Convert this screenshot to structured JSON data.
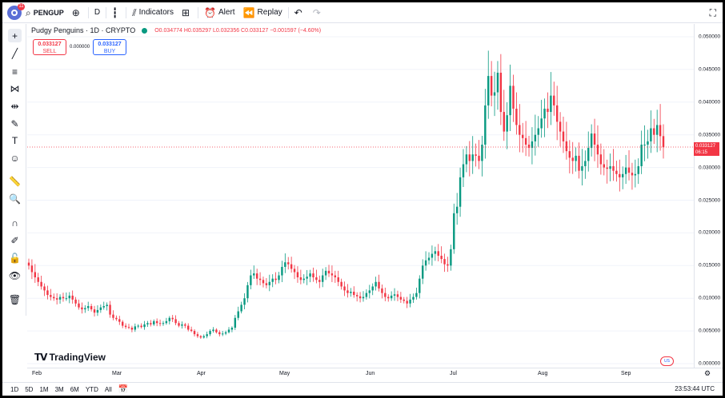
{
  "topbar": {
    "notification_count": "11",
    "symbol": "PENGUP",
    "interval": "D",
    "indicators_label": "Indicators",
    "alert_label": "Alert",
    "replay_label": "Replay"
  },
  "legend": {
    "title": "Pudgy Penguins · 1D · CRYPTO",
    "ohlc_text": "O0.034774 H0.035297 L0.032356 C0.033127 −0.001597 (−4.60%)"
  },
  "trade": {
    "sell_price": "0.033127",
    "sell_label": "SELL",
    "spread": "0.000000",
    "buy_price": "0.033127",
    "buy_label": "BUY"
  },
  "price_tag": {
    "price": "0.033127",
    "countdown": "06:15"
  },
  "colors": {
    "up": "#089981",
    "down": "#f23645",
    "accent": "#2962ff"
  },
  "brand": "TradingView",
  "bottombar": {
    "ranges": [
      "1D",
      "5D",
      "1M",
      "3M",
      "6M",
      "YTD",
      "All"
    ],
    "utc_time": "23:53:44 UTC"
  },
  "icons": {
    "left_toolbar": [
      "crosshair-icon",
      "trend-line-icon",
      "fib-retracement-icon",
      "pattern-icon",
      "prediction-icon",
      "brush-icon",
      "text-icon",
      "emoji-icon",
      "ruler-icon",
      "zoom-in-icon",
      "magnet-icon",
      "lock-drawing-icon",
      "lock-icon",
      "eye-icon",
      "trash-icon"
    ]
  },
  "chart_data": {
    "type": "candlestick",
    "symbol": "Pudgy Penguins · 1D · CRYPTO",
    "y_ticks": [
      "0.050000",
      "0.045000",
      "0.040000",
      "0.035000",
      "0.030000",
      "0.025000",
      "0.020000",
      "0.015000",
      "0.010000",
      "0.005000",
      "0.000000"
    ],
    "x_ticks": [
      "Feb",
      "Mar",
      "Apr",
      "May",
      "Jun",
      "Jul",
      "Aug",
      "Sep"
    ],
    "ylim": [
      0,
      0.05
    ],
    "last_price": 0.033127,
    "up_color": "#089981",
    "down_color": "#f23645",
    "closes": [
      0.015,
      0.014,
      0.0132,
      0.0125,
      0.0118,
      0.0112,
      0.0105,
      0.0102,
      0.01,
      0.0098,
      0.0102,
      0.01,
      0.01,
      0.0104,
      0.0098,
      0.0092,
      0.0086,
      0.0083,
      0.0085,
      0.0088,
      0.0083,
      0.0078,
      0.0082,
      0.0086,
      0.0088,
      0.009,
      0.0075,
      0.007,
      0.0068,
      0.0064,
      0.0058,
      0.0056,
      0.0055,
      0.0052,
      0.0057,
      0.0058,
      0.0056,
      0.006,
      0.0062,
      0.006,
      0.0065,
      0.0062,
      0.0061,
      0.0062,
      0.0065,
      0.007,
      0.0068,
      0.0062,
      0.0058,
      0.006,
      0.0058,
      0.0052,
      0.005,
      0.0045,
      0.0042,
      0.004,
      0.0042,
      0.0045,
      0.005,
      0.0052,
      0.0048,
      0.0045,
      0.0046,
      0.0048,
      0.0052,
      0.0055,
      0.007,
      0.008,
      0.009,
      0.01,
      0.012,
      0.0135,
      0.0138,
      0.013,
      0.0128,
      0.0123,
      0.012,
      0.0125,
      0.013,
      0.0128,
      0.0135,
      0.0148,
      0.0155,
      0.0152,
      0.0145,
      0.014,
      0.0132,
      0.0128,
      0.013,
      0.0133,
      0.0138,
      0.0132,
      0.0128,
      0.0125,
      0.0135,
      0.0142,
      0.0138,
      0.0135,
      0.0132,
      0.0125,
      0.0118,
      0.0112,
      0.0108,
      0.011,
      0.0105,
      0.0103,
      0.01,
      0.0102,
      0.0108,
      0.0112,
      0.0118,
      0.0125,
      0.0115,
      0.0108,
      0.0102,
      0.01,
      0.0104,
      0.0106,
      0.0102,
      0.0098,
      0.0096,
      0.0092,
      0.0098,
      0.0102,
      0.0108,
      0.013,
      0.015,
      0.0158,
      0.0162,
      0.0168,
      0.0172,
      0.0165,
      0.016,
      0.0152,
      0.015,
      0.0175,
      0.023,
      0.024,
      0.0285,
      0.0305,
      0.032,
      0.031,
      0.032,
      0.0318,
      0.031,
      0.0335,
      0.0395,
      0.044,
      0.041,
      0.0415,
      0.0445,
      0.0385,
      0.0355,
      0.038,
      0.0425,
      0.039,
      0.0365,
      0.035,
      0.0345,
      0.0335,
      0.033,
      0.034,
      0.035,
      0.036,
      0.0375,
      0.039,
      0.0385,
      0.041,
      0.0395,
      0.037,
      0.0355,
      0.034,
      0.0325,
      0.0315,
      0.031,
      0.0318,
      0.0295,
      0.0302,
      0.031,
      0.033,
      0.0352,
      0.0335,
      0.032,
      0.0305,
      0.03,
      0.0298,
      0.0302,
      0.0295,
      0.029,
      0.0285,
      0.029,
      0.03,
      0.0292,
      0.0288,
      0.029,
      0.0302,
      0.0335,
      0.0335,
      0.034,
      0.036,
      0.035,
      0.0365,
      0.0348,
      0.0331
    ]
  }
}
